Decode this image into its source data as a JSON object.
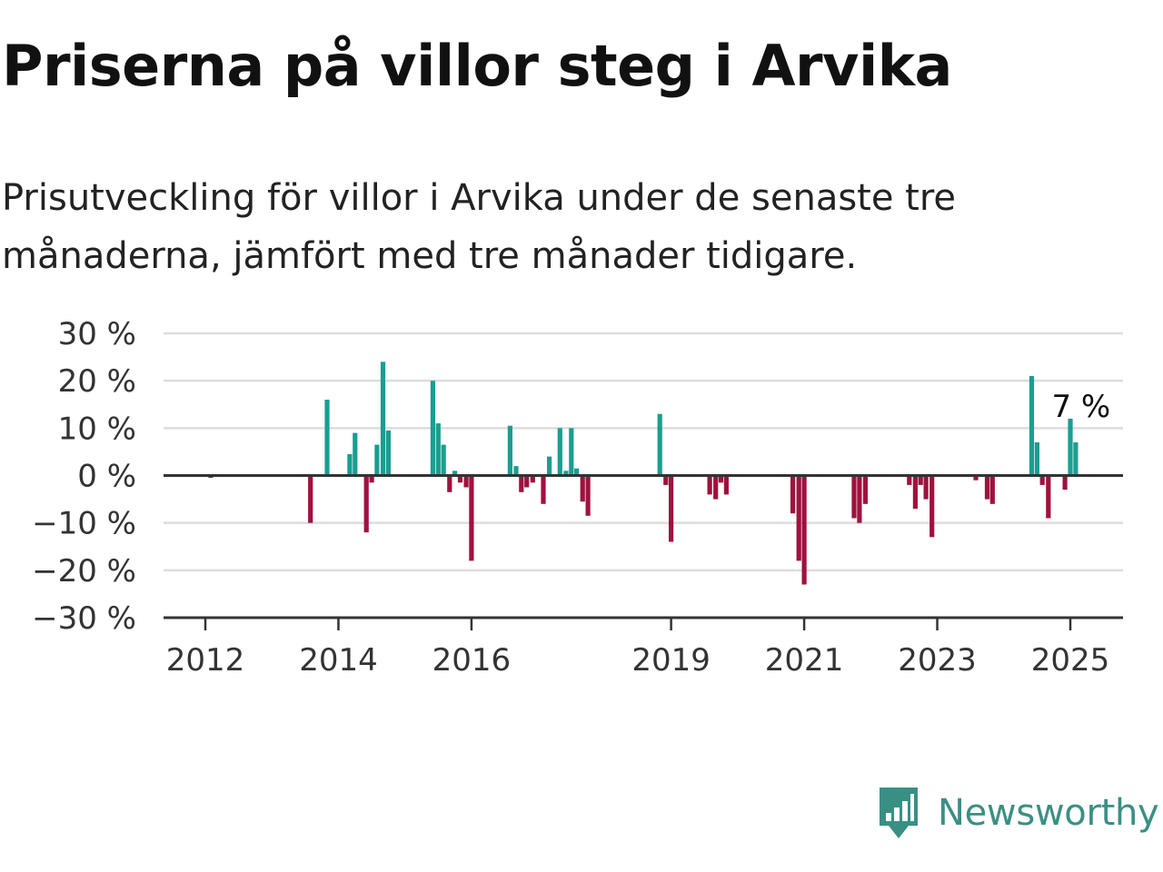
{
  "title": "Priserna på villor steg i Arvika",
  "subtitle": "Prisutveckling för villor i Arvika under de senaste tre månaderna, jämfört med tre månader tidigare.",
  "brand": {
    "name": "Newsworthy",
    "icon": "newsworthy-logo-icon",
    "color": "#3a8f84"
  },
  "chart_data": {
    "type": "bar",
    "ylim": [
      -30,
      30
    ],
    "y_ticks": [
      30,
      20,
      10,
      0,
      -10,
      -20,
      -30
    ],
    "y_tick_labels": [
      "30 %",
      "20 %",
      "10 %",
      "0 %",
      "−10 %",
      "−20 %",
      "−30 %"
    ],
    "x_ticks": [
      2012,
      2014,
      2016,
      2019,
      2021,
      2023,
      2025
    ],
    "x_tick_labels": [
      "2012",
      "2014",
      "2016",
      "2019",
      "2021",
      "2023",
      "2025"
    ],
    "grid": true,
    "colors": {
      "positive": "#1a9e91",
      "negative": "#a0113e",
      "grid": "#dddddd",
      "axis": "#333333"
    },
    "annotation": {
      "text": "7 %",
      "x": 2025.08,
      "y": 7
    },
    "x": [
      2012.08,
      2013.58,
      2013.83,
      2014.17,
      2014.25,
      2014.42,
      2014.5,
      2014.58,
      2014.67,
      2014.75,
      2015.42,
      2015.5,
      2015.58,
      2015.67,
      2015.75,
      2015.83,
      2015.92,
      2016.0,
      2016.58,
      2016.67,
      2016.75,
      2016.83,
      2016.92,
      2017.08,
      2017.17,
      2017.33,
      2017.42,
      2017.5,
      2017.58,
      2017.67,
      2017.75,
      2018.83,
      2018.92,
      2019.0,
      2019.58,
      2019.67,
      2019.75,
      2019.83,
      2020.83,
      2020.92,
      2021.0,
      2021.75,
      2021.83,
      2021.92,
      2022.58,
      2022.67,
      2022.75,
      2022.83,
      2022.92,
      2023.58,
      2023.75,
      2023.83,
      2024.42,
      2024.5,
      2024.58,
      2024.67,
      2024.92,
      2025.0,
      2025.08
    ],
    "values": [
      -0.5,
      -10,
      16,
      4.5,
      9,
      -12,
      -1.5,
      6.5,
      24,
      9.5,
      20,
      11,
      6.5,
      -3.5,
      1,
      -1.5,
      -2.5,
      -18,
      10.5,
      2,
      -3.5,
      -2.5,
      -1.5,
      -6,
      4,
      10,
      1,
      10,
      1.5,
      -5.5,
      -8.5,
      13,
      -2,
      -14,
      -4,
      -5,
      -1.5,
      -4,
      -8,
      -18,
      -23,
      -9,
      -10,
      -6,
      -2,
      -7,
      -2,
      -5,
      -13,
      -1,
      -5,
      -6,
      21,
      7,
      -2,
      -9,
      -3,
      12,
      7
    ]
  }
}
